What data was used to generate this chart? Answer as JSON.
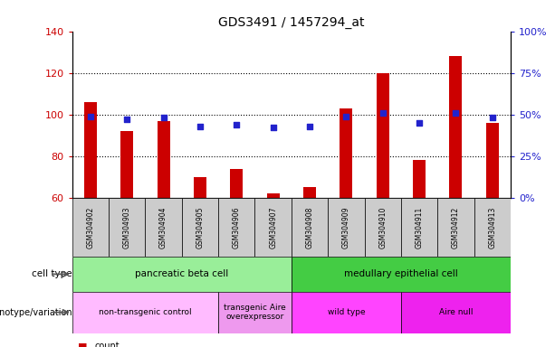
{
  "title": "GDS3491 / 1457294_at",
  "samples": [
    "GSM304902",
    "GSM304903",
    "GSM304904",
    "GSM304905",
    "GSM304906",
    "GSM304907",
    "GSM304908",
    "GSM304909",
    "GSM304910",
    "GSM304911",
    "GSM304912",
    "GSM304913"
  ],
  "counts": [
    106,
    92,
    97,
    70,
    74,
    62,
    65,
    103,
    120,
    78,
    128,
    96
  ],
  "percentile_ranks": [
    49,
    47,
    48,
    43,
    44,
    42,
    43,
    49,
    51,
    45,
    51,
    48
  ],
  "ylim_left": [
    60,
    140
  ],
  "ylim_right": [
    0,
    100
  ],
  "yticks_left": [
    60,
    80,
    100,
    120,
    140
  ],
  "yticks_right": [
    0,
    25,
    50,
    75,
    100
  ],
  "bar_color": "#cc0000",
  "dot_color": "#2222cc",
  "cell_type_groups": [
    {
      "label": "pancreatic beta cell",
      "start": 0,
      "end": 6,
      "color": "#99ee99"
    },
    {
      "label": "medullary epithelial cell",
      "start": 6,
      "end": 12,
      "color": "#44cc44"
    }
  ],
  "genotype_groups": [
    {
      "label": "non-transgenic control",
      "start": 0,
      "end": 4,
      "color": "#ffbbff"
    },
    {
      "label": "transgenic Aire\noverexpressor",
      "start": 4,
      "end": 6,
      "color": "#ee99ee"
    },
    {
      "label": "wild type",
      "start": 6,
      "end": 9,
      "color": "#ff44ff"
    },
    {
      "label": "Aire null",
      "start": 9,
      "end": 12,
      "color": "#ee22ee"
    }
  ],
  "tick_label_color_left": "#cc0000",
  "tick_label_color_right": "#2222cc",
  "xlabel_bg": "#cccccc",
  "plot_bg": "#ffffff",
  "figure_bg": "#ffffff"
}
